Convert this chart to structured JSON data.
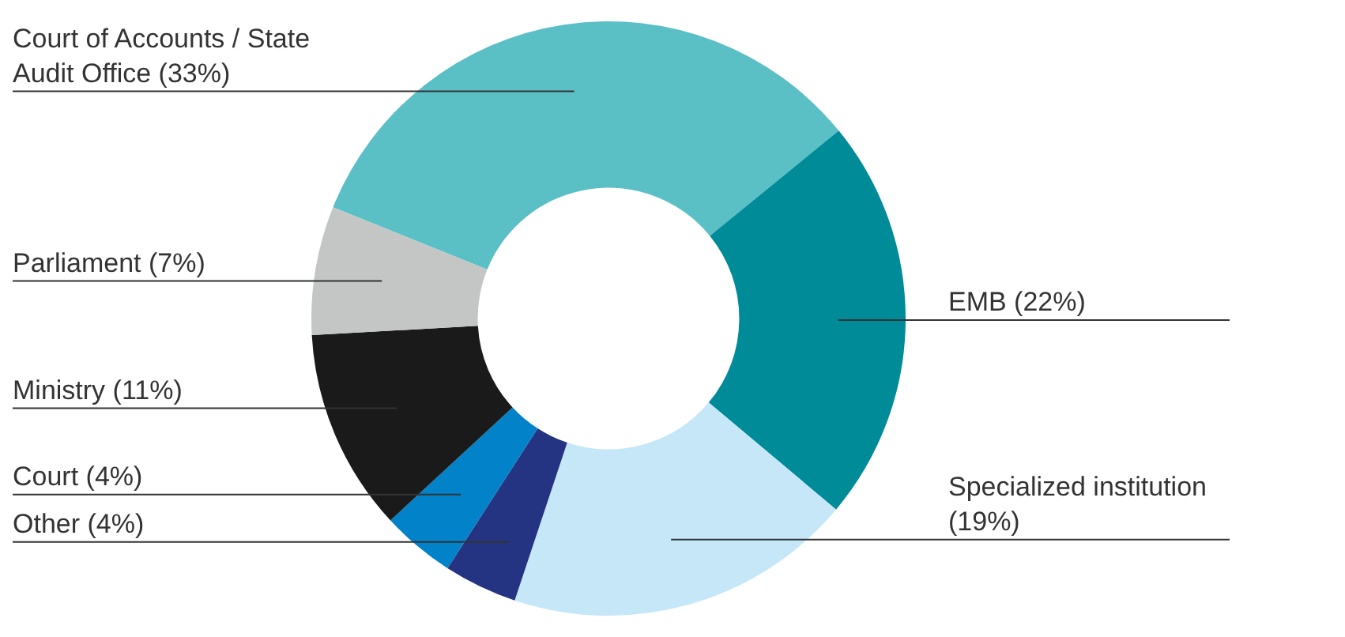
{
  "chart_data": {
    "type": "donut",
    "categories": [
      "Court of Accounts / State Audit Office (33%)",
      "EMB (22%)",
      "Specialized institution (19%)",
      "Other (4%)",
      "Court (4%)",
      "Ministry (11%)",
      "Parliament (7%)"
    ],
    "values": [
      33,
      22,
      19,
      4,
      4,
      11,
      7
    ],
    "colors": [
      "#5bbfc6",
      "#008b99",
      "#c5e7f8",
      "#253482",
      "#0282c8",
      "#1a1a1a",
      "#c4c6c6"
    ]
  }
}
